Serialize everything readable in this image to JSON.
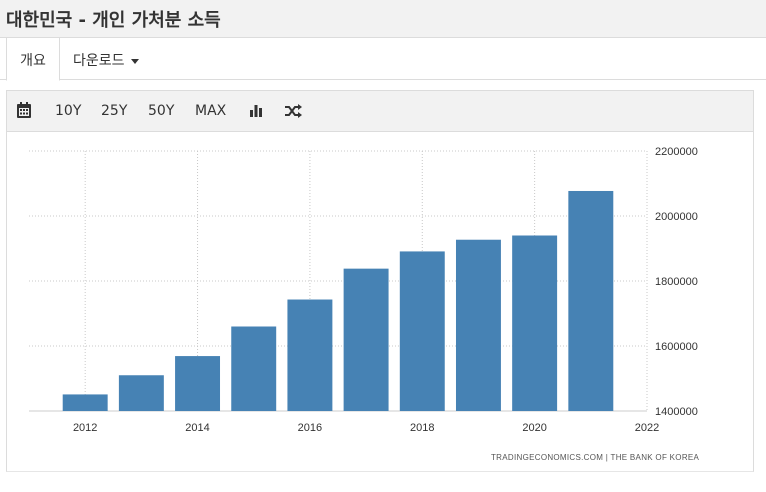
{
  "page": {
    "title": "대한민국 - 개인 가처분 소득"
  },
  "tabs": {
    "overview": "개요",
    "download": "다운로드"
  },
  "toolbar": {
    "calendar_icon": "calendar-icon",
    "range_10y": "10Y",
    "range_25y": "25Y",
    "range_50y": "50Y",
    "range_max": "MAX",
    "bar_chart_icon": "bar-chart-icon",
    "shuffle_icon": "shuffle-icon"
  },
  "chart_data": {
    "type": "bar",
    "categories": [
      "2012",
      "2013",
      "2014",
      "2015",
      "2016",
      "2017",
      "2018",
      "2019",
      "2020",
      "2021"
    ],
    "values": [
      1451000,
      1510000,
      1569000,
      1660000,
      1743000,
      1838000,
      1891000,
      1927000,
      1940000,
      2077000
    ],
    "x_ticks": [
      "2012",
      "2014",
      "2016",
      "2018",
      "2020",
      "2022"
    ],
    "y_ticks": [
      "1400000",
      "1600000",
      "1800000",
      "2000000",
      "2200000"
    ],
    "ylim": [
      1400000,
      2200000
    ],
    "xlim": [
      2011,
      2022
    ],
    "title": "",
    "xlabel": "",
    "ylabel": "",
    "grid": true,
    "bar_color": "#4682b4",
    "source": "TRADINGECONOMICS.COM  |  THE BANK OF KOREA"
  }
}
